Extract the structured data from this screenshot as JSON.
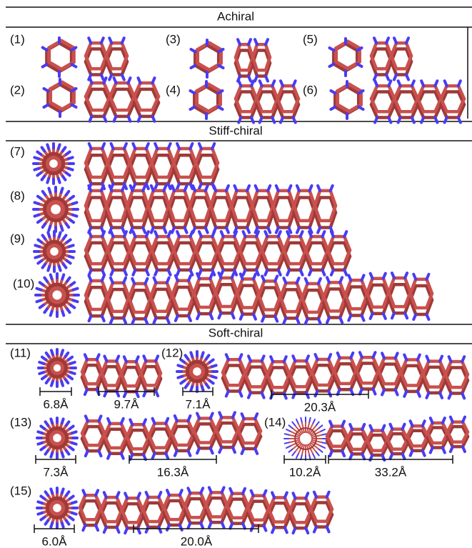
{
  "sections": [
    {
      "title": "Achiral",
      "items": [
        {
          "label": "(1)"
        },
        {
          "label": "(3)"
        },
        {
          "label": "(5)"
        },
        {
          "label": "(2)"
        },
        {
          "label": "(4)"
        },
        {
          "label": "(6)"
        }
      ]
    },
    {
      "title": "Stiff-chiral",
      "items": [
        {
          "label": "(7)"
        },
        {
          "label": "(8)"
        },
        {
          "label": "(9)"
        },
        {
          "label": "(10)"
        }
      ]
    },
    {
      "title": "Soft-chiral",
      "items": [
        {
          "label": "(11)",
          "dims": [
            "6.8Å",
            "9.7Å"
          ]
        },
        {
          "label": "(12)",
          "dims": [
            "7.1Å",
            "20.3Å"
          ]
        },
        {
          "label": "(13)",
          "dims": [
            "7.3Å",
            "16.3Å"
          ]
        },
        {
          "label": "(14)",
          "dims": [
            "10.2Å",
            "33.2Å"
          ]
        },
        {
          "label": "(15)",
          "dims": [
            "6.0Å",
            "20.0Å"
          ]
        }
      ]
    }
  ]
}
